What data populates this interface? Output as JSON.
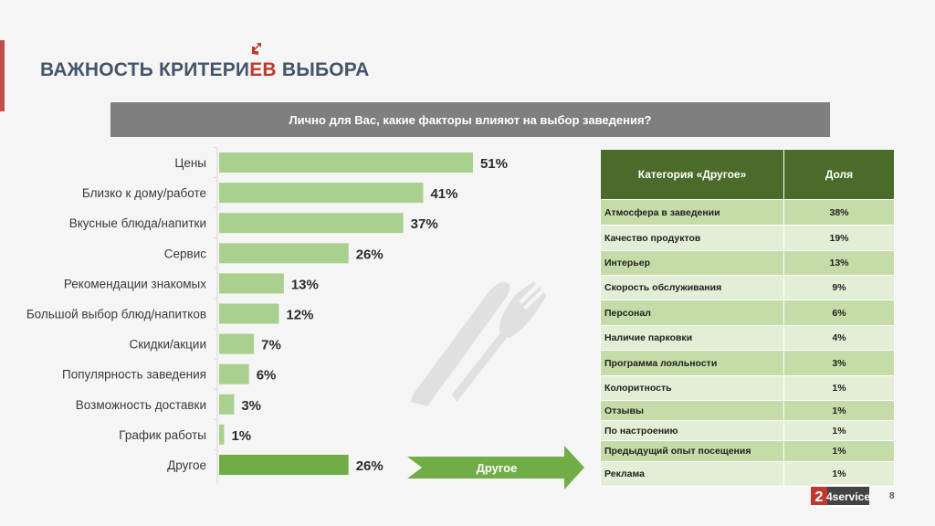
{
  "slide": {
    "title_before": "ВАЖНОСТЬ КРИТЕРИ",
    "title_highlight": "ЕВ",
    "title_after": " ВЫБОРА",
    "question": "Лично для Вас, какие факторы влияют на выбор заведения?",
    "other_arrow_label": "Другое",
    "page_number": "8",
    "logo_text": "4service",
    "logo_digit": "2"
  },
  "chart_data": {
    "type": "bar",
    "orientation": "horizontal",
    "categories": [
      "Цены",
      "Близко к дому/работе",
      "Вкусные блюда/напитки",
      "Сервис",
      "Рекомендации знакомых",
      "Большой выбор блюд/напитков",
      "Скидки/акции",
      "Популярность заведения",
      "Возможность доставки",
      "График работы",
      "Другое"
    ],
    "values": [
      51,
      41,
      37,
      26,
      13,
      12,
      7,
      6,
      3,
      1,
      26
    ],
    "value_labels": [
      "51%",
      "41%",
      "37%",
      "26%",
      "13%",
      "12%",
      "7%",
      "6%",
      "3%",
      "1%",
      "26%"
    ],
    "unit": "%",
    "xlim": [
      0,
      100
    ],
    "colors": {
      "bar": "#a9d08e",
      "highlight_bar": "#70ad47"
    },
    "highlight_category": "Другое"
  },
  "other_table": {
    "headers": [
      "Категория «Другое»",
      "Доля"
    ],
    "rows": [
      {
        "label": "Атмосфера в заведении",
        "value": "38%"
      },
      {
        "label": "Качество продуктов",
        "value": "19%"
      },
      {
        "label": "Интерьер",
        "value": "13%"
      },
      {
        "label": "Скорость обслуживания",
        "value": "9%"
      },
      {
        "label": "Персонал",
        "value": "6%"
      },
      {
        "label": "Наличие парковки",
        "value": "4%"
      },
      {
        "label": "Программа лояльности",
        "value": "3%"
      },
      {
        "label": "Колоритность",
        "value": "1%"
      },
      {
        "label": "Отзывы",
        "value": "1%"
      },
      {
        "label": "По настроению",
        "value": "1%"
      },
      {
        "label": "Предыдущий опыт посещения",
        "value": "1%"
      },
      {
        "label": "Реклама",
        "value": "1%"
      }
    ]
  },
  "colors": {
    "header_green": "#4a6b2a",
    "accent_red": "#c0392b",
    "question_bg": "#7f7f7f",
    "title_color": "#44546a"
  }
}
